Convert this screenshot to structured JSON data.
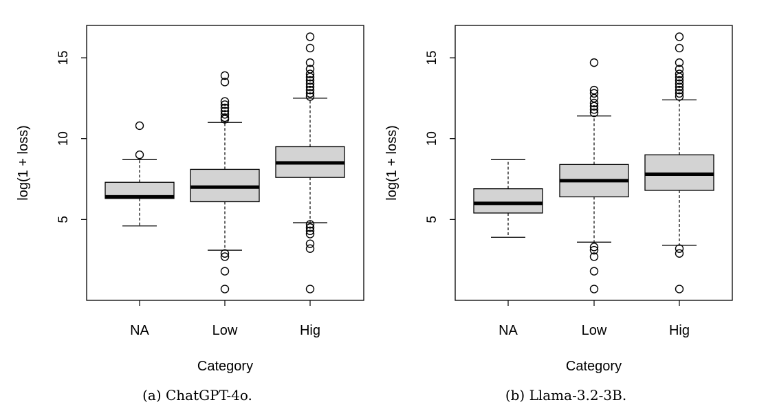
{
  "chart_data": [
    {
      "type": "boxplot",
      "caption": "(a) ChatGPT-4o.",
      "xlabel": "Category",
      "ylabel": "log(1 + loss)",
      "categories": [
        "NA",
        "Low",
        "Hig"
      ],
      "ylim": [
        0,
        17
      ],
      "yticks": [
        "5",
        "10",
        "15"
      ],
      "box_fill": "#d3d3d3",
      "boxes": [
        {
          "category": "NA",
          "q1": 6.3,
          "median": 6.4,
          "q3": 7.3,
          "whisker_low": 4.6,
          "whisker_high": 8.7,
          "outliers": [
            9.0,
            10.8
          ]
        },
        {
          "category": "Low",
          "q1": 6.1,
          "median": 7.0,
          "q3": 8.1,
          "whisker_low": 3.1,
          "whisker_high": 11.0,
          "outliers": [
            0.7,
            1.8,
            2.7,
            2.9,
            11.2,
            11.3,
            11.5,
            11.7,
            11.9,
            12.1,
            12.3,
            13.5,
            13.9
          ]
        },
        {
          "category": "Hig",
          "q1": 7.6,
          "median": 8.5,
          "q3": 9.5,
          "whisker_low": 4.8,
          "whisker_high": 12.5,
          "outliers": [
            0.7,
            3.2,
            3.5,
            4.1,
            4.3,
            4.5,
            4.7,
            12.6,
            12.8,
            13.0,
            13.2,
            13.4,
            13.6,
            13.8,
            14.0,
            14.3,
            14.7,
            15.6,
            16.3
          ]
        }
      ]
    },
    {
      "type": "boxplot",
      "caption": "(b) Llama-3.2-3B.",
      "xlabel": "Category",
      "ylabel": "log(1 + loss)",
      "categories": [
        "NA",
        "Low",
        "Hig"
      ],
      "ylim": [
        0,
        17
      ],
      "yticks": [
        "5",
        "10",
        "15"
      ],
      "box_fill": "#d3d3d3",
      "boxes": [
        {
          "category": "NA",
          "q1": 5.4,
          "median": 6.0,
          "q3": 6.9,
          "whisker_low": 3.9,
          "whisker_high": 8.7,
          "outliers": []
        },
        {
          "category": "Low",
          "q1": 6.4,
          "median": 7.4,
          "q3": 8.4,
          "whisker_low": 3.6,
          "whisker_high": 11.4,
          "outliers": [
            0.7,
            1.8,
            2.7,
            3.1,
            3.3,
            11.6,
            11.8,
            12.0,
            12.2,
            12.5,
            12.8,
            13.0,
            14.7
          ]
        },
        {
          "category": "Hig",
          "q1": 6.8,
          "median": 7.8,
          "q3": 9.0,
          "whisker_low": 3.4,
          "whisker_high": 12.4,
          "outliers": [
            0.7,
            2.9,
            3.2,
            12.6,
            12.8,
            13.0,
            13.2,
            13.4,
            13.6,
            13.8,
            14.0,
            14.3,
            14.7,
            15.6,
            16.3
          ]
        }
      ]
    }
  ]
}
